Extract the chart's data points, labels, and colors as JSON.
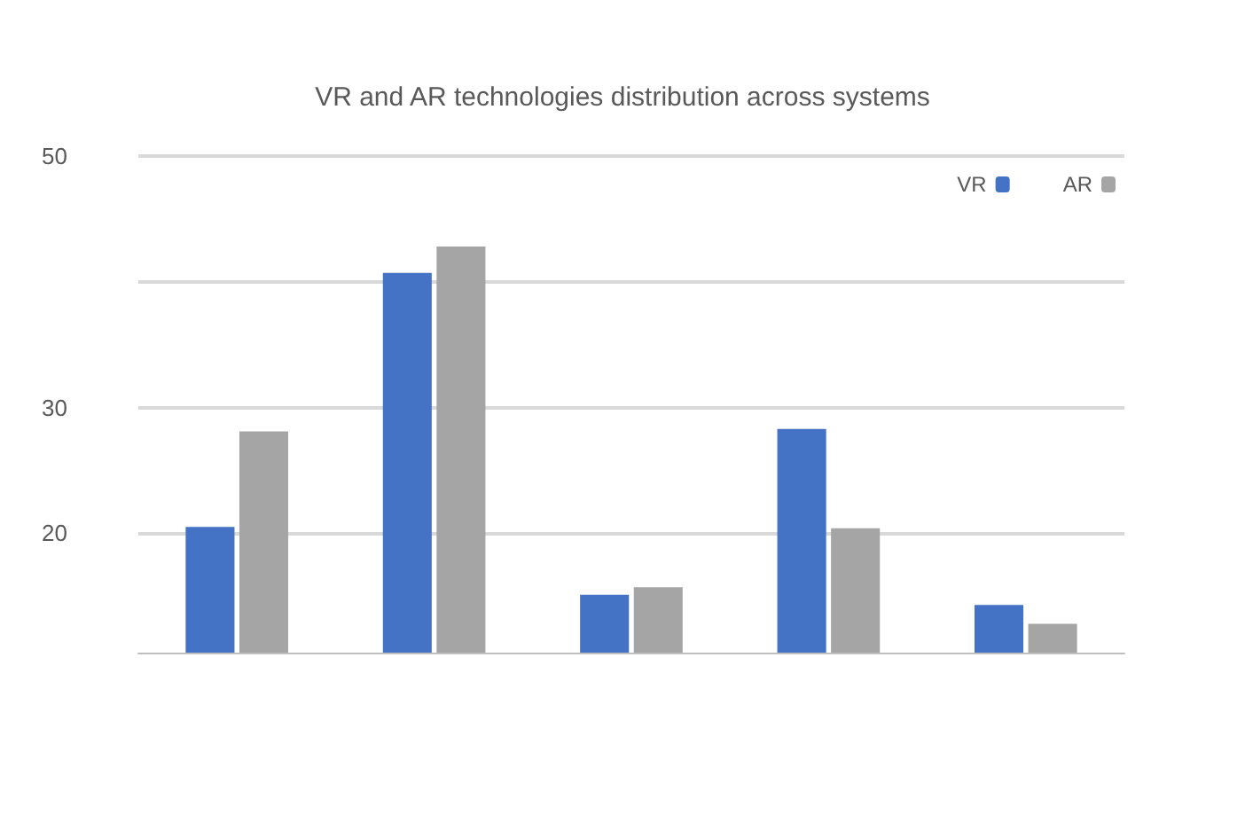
{
  "chart_data": {
    "type": "bar",
    "title": "VR and AR technologies distribution across systems",
    "categories": [
      null,
      null,
      null,
      null,
      null
    ],
    "series": [
      {
        "name": "VR",
        "color": "#4472c4",
        "values": [
          20.5,
          40.7,
          15.1,
          28.3,
          14.3
        ]
      },
      {
        "name": "AR",
        "color": "#a5a5a5",
        "values": [
          28.1,
          42.8,
          15.7,
          20.4,
          12.8
        ]
      }
    ],
    "ylim": [
      10.5,
      50
    ],
    "yticks": [
      20,
      30,
      {
        "value": 40,
        "label": null
      },
      50
    ],
    "grid": "y",
    "legend": "top right"
  }
}
